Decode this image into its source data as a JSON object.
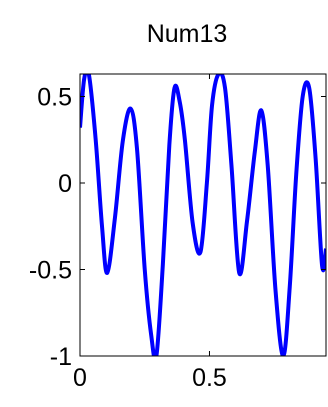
{
  "chart_data": {
    "type": "line",
    "title": "Num13",
    "xlabel": "",
    "ylabel": "",
    "xlim": [
      0,
      0.95
    ],
    "ylim": [
      -1,
      0.63
    ],
    "xticks": [
      0,
      0.5
    ],
    "xtick_labels": [
      "0",
      "0.5"
    ],
    "yticks": [
      0.5,
      0,
      -0.5,
      -1
    ],
    "ytick_labels": [
      "0.5",
      "0",
      "-0.5",
      "-1"
    ],
    "grid": false,
    "series": [
      {
        "color": "#0000ff",
        "x": [
          0.0,
          0.016,
          0.034,
          0.06,
          0.085,
          0.105,
          0.135,
          0.165,
          0.195,
          0.22,
          0.25,
          0.275,
          0.295,
          0.32,
          0.345,
          0.365,
          0.385,
          0.405,
          0.435,
          0.465,
          0.49,
          0.51,
          0.535,
          0.56,
          0.585,
          0.615,
          0.645,
          0.675,
          0.7,
          0.725,
          0.755,
          0.785,
          0.81,
          0.835,
          0.86,
          0.885,
          0.91,
          0.935,
          0.95
        ],
        "y": [
          0.32,
          0.6,
          0.63,
          0.26,
          -0.25,
          -0.52,
          -0.2,
          0.24,
          0.43,
          0.2,
          -0.5,
          -0.88,
          -1.0,
          -0.47,
          0.22,
          0.55,
          0.47,
          0.25,
          -0.23,
          -0.4,
          0.0,
          0.45,
          0.63,
          0.55,
          0.1,
          -0.52,
          -0.22,
          0.18,
          0.42,
          0.1,
          -0.62,
          -1.0,
          -0.6,
          0.05,
          0.5,
          0.55,
          0.14,
          -0.48,
          -0.38
        ]
      }
    ]
  }
}
